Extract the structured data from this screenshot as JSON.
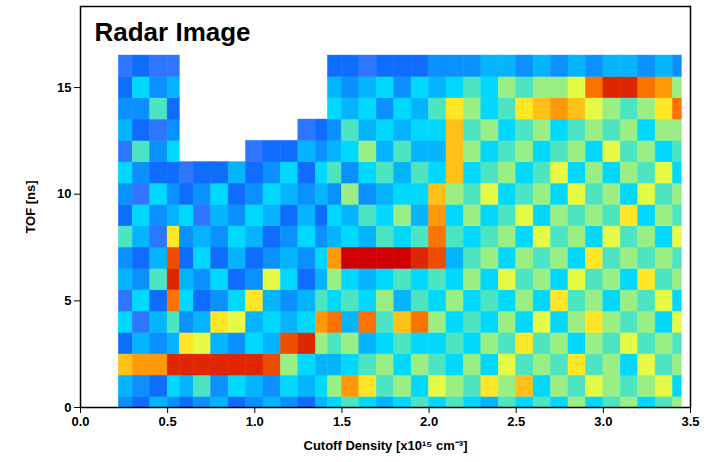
{
  "chart_data": {
    "type": "heatmap",
    "title": "Radar Image",
    "x_label": "Cutoff Density [x10¹⁵ cm⁻³]",
    "y_label": "TOF [ns]",
    "xlim": [
      0,
      3.5
    ],
    "ylim": [
      0,
      18.8
    ],
    "xticks": [
      {
        "value": 0,
        "label": "0.0"
      },
      {
        "value": 0.5,
        "label": "0.5"
      },
      {
        "value": 1,
        "label": "1.0"
      },
      {
        "value": 1.5,
        "label": "1.5"
      },
      {
        "value": 2,
        "label": "2.0"
      },
      {
        "value": 2.5,
        "label": "2.5"
      },
      {
        "value": 3,
        "label": "3.0"
      },
      {
        "value": 3.5,
        "label": "3.5"
      }
    ],
    "yticks": [
      0,
      5,
      10,
      15
    ],
    "zlim": [
      0,
      1
    ],
    "x_edges": [
      0.22,
      0.3,
      0.4,
      0.5,
      0.57,
      0.65,
      0.75,
      0.85,
      0.95,
      1.05,
      1.15,
      1.25,
      1.35,
      1.42,
      1.5,
      1.6,
      1.7,
      1.8,
      1.9,
      2.0,
      2.1,
      2.2,
      2.3,
      2.4,
      2.5,
      2.6,
      2.7,
      2.8,
      2.9,
      3.0,
      3.1,
      3.2,
      3.3,
      3.4,
      3.45
    ],
    "y_edges": [
      0,
      0.5,
      1.5,
      2.5,
      3.5,
      4.5,
      5.5,
      6.5,
      7.5,
      8.5,
      9.5,
      10.5,
      11.5,
      12.5,
      13.5,
      14.5,
      15.5,
      16.5
    ],
    "cells": [
      [
        0.4,
        0.45,
        0.75,
        0.35,
        0.5,
        0.3,
        0.45,
        0.4,
        0.55,
        0.35,
        0.4,
        0.5,
        0.3,
        0.45,
        0.4,
        0.35,
        0.3
      ],
      [
        0.35,
        0.4,
        0.8,
        0.45,
        0.3,
        0.5,
        0.4,
        0.35,
        0.45,
        0.5,
        0.3,
        0.4,
        0.55,
        0.35,
        0.4,
        0.5,
        0.35
      ],
      [
        0.45,
        0.35,
        0.8,
        0.4,
        0.45,
        0.35,
        0.55,
        0.45,
        0.3,
        0.4,
        0.5,
        0.35,
        0.4,
        0.3,
        0.55,
        0.4,
        0.3
      ],
      [
        0.4,
        0.5,
        0.95,
        0.45,
        0.55,
        0.85,
        0.95,
        0.9,
        0.7,
        0.45,
        0.4,
        0.35,
        0.5,
        0.4,
        0.35,
        0.45,
        0.3
      ],
      [
        0.35,
        0.45,
        0.95,
        0.7,
        0.4,
        0.5,
        0.45,
        0.35,
        0.4,
        0.5,
        0.35,
        0.3,
        null,
        null,
        null,
        null,
        null
      ],
      [
        0.4,
        0.55,
        0.95,
        0.65,
        0.45,
        0.35,
        0.4,
        0.5,
        0.45,
        0.3,
        0.4,
        0.35,
        null,
        null,
        null,
        null,
        null
      ],
      [
        0.45,
        0.4,
        0.95,
        0.45,
        0.7,
        0.4,
        0.5,
        0.35,
        0.4,
        0.45,
        0.5,
        0.35,
        null,
        null,
        null,
        null,
        null
      ],
      [
        0.35,
        0.5,
        0.95,
        0.4,
        0.65,
        0.5,
        0.35,
        0.45,
        0.5,
        0.4,
        0.35,
        0.45,
        null,
        null,
        null,
        null,
        null
      ],
      [
        0.4,
        0.45,
        0.95,
        0.5,
        0.45,
        0.7,
        0.4,
        0.35,
        0.45,
        0.5,
        0.4,
        0.35,
        0.3,
        null,
        null,
        null,
        null
      ],
      [
        0.45,
        0.4,
        0.9,
        0.45,
        0.5,
        0.45,
        0.65,
        0.4,
        0.35,
        0.45,
        0.5,
        0.4,
        0.35,
        null,
        null,
        null,
        null
      ],
      [
        0.4,
        0.5,
        0.6,
        0.9,
        0.45,
        0.4,
        0.5,
        0.45,
        0.4,
        0.35,
        0.45,
        0.5,
        0.35,
        null,
        null,
        null,
        null
      ],
      [
        0.35,
        0.45,
        0.5,
        0.95,
        0.5,
        0.45,
        0.35,
        0.4,
        0.5,
        0.45,
        0.4,
        0.35,
        0.45,
        0.3,
        null,
        null,
        null
      ],
      [
        0.45,
        0.5,
        0.45,
        0.6,
        0.8,
        0.55,
        0.45,
        0.5,
        0.4,
        0.35,
        0.45,
        0.5,
        0.4,
        0.35,
        null,
        null,
        null
      ],
      [
        0.5,
        0.6,
        0.45,
        0.55,
        0.85,
        0.5,
        0.6,
        0.8,
        0.45,
        0.5,
        0.4,
        0.55,
        0.45,
        0.4,
        0.5,
        0.45,
        0.35
      ],
      [
        0.55,
        0.8,
        0.5,
        0.6,
        0.45,
        0.55,
        0.5,
        1.0,
        0.5,
        0.45,
        0.6,
        0.4,
        0.5,
        0.55,
        0.45,
        0.4,
        0.35
      ],
      [
        0.5,
        0.7,
        0.55,
        0.45,
        0.85,
        0.5,
        0.45,
        1.0,
        0.45,
        0.55,
        0.4,
        0.5,
        0.6,
        0.45,
        0.5,
        0.45,
        0.3
      ],
      [
        0.45,
        0.55,
        0.6,
        0.5,
        0.55,
        0.6,
        0.5,
        1.0,
        0.55,
        0.5,
        0.45,
        0.55,
        0.45,
        0.5,
        0.4,
        0.5,
        0.35
      ],
      [
        0.5,
        0.6,
        0.5,
        0.55,
        0.75,
        0.45,
        0.55,
        1.0,
        0.5,
        0.6,
        0.5,
        0.45,
        0.55,
        0.45,
        0.5,
        0.4,
        0.35
      ],
      [
        0.55,
        0.5,
        0.6,
        0.5,
        0.85,
        0.55,
        0.5,
        0.95,
        0.55,
        0.45,
        0.5,
        0.55,
        0.45,
        0.5,
        0.45,
        0.5,
        0.35
      ],
      [
        0.5,
        0.65,
        0.55,
        0.5,
        0.6,
        0.5,
        0.55,
        0.9,
        0.85,
        0.8,
        0.75,
        0.5,
        0.45,
        0.5,
        0.55,
        0.45,
        0.4
      ],
      [
        0.55,
        0.6,
        0.5,
        0.55,
        0.5,
        0.6,
        0.5,
        0.45,
        0.55,
        0.5,
        0.6,
        0.75,
        0.75,
        0.75,
        0.7,
        0.5,
        0.4
      ],
      [
        0.5,
        0.55,
        0.6,
        0.5,
        0.55,
        0.5,
        0.6,
        0.55,
        0.5,
        0.6,
        0.55,
        0.5,
        0.6,
        0.55,
        0.6,
        0.55,
        0.4
      ],
      [
        0.45,
        0.7,
        0.5,
        0.6,
        0.5,
        0.55,
        0.5,
        0.6,
        0.55,
        0.5,
        0.65,
        0.55,
        0.5,
        0.6,
        0.5,
        0.5,
        0.45
      ],
      [
        0.55,
        0.6,
        0.65,
        0.55,
        0.6,
        0.5,
        0.65,
        0.5,
        0.6,
        0.55,
        0.5,
        0.6,
        0.55,
        0.5,
        0.55,
        0.6,
        0.45
      ],
      [
        0.5,
        0.75,
        0.55,
        0.7,
        0.5,
        0.6,
        0.55,
        0.6,
        0.5,
        0.65,
        0.55,
        0.5,
        0.6,
        0.55,
        0.7,
        0.55,
        0.4
      ],
      [
        0.55,
        0.5,
        0.6,
        0.55,
        0.65,
        0.5,
        0.6,
        0.55,
        0.65,
        0.5,
        0.6,
        0.55,
        0.5,
        0.6,
        0.75,
        0.6,
        0.45
      ],
      [
        0.5,
        0.6,
        0.55,
        0.6,
        0.5,
        0.7,
        0.5,
        0.6,
        0.55,
        0.6,
        0.5,
        0.65,
        0.55,
        0.5,
        0.8,
        0.6,
        0.4
      ],
      [
        0.6,
        0.55,
        0.7,
        0.5,
        0.6,
        0.55,
        0.65,
        0.5,
        0.6,
        0.55,
        0.65,
        0.5,
        0.6,
        0.55,
        0.75,
        0.65,
        0.45
      ],
      [
        0.5,
        0.65,
        0.55,
        0.6,
        0.7,
        0.6,
        0.55,
        0.7,
        0.5,
        0.6,
        0.55,
        0.6,
        0.5,
        0.6,
        0.65,
        0.85,
        0.4
      ],
      [
        0.55,
        0.6,
        0.6,
        0.55,
        0.6,
        0.5,
        0.6,
        0.55,
        0.65,
        0.55,
        0.6,
        0.5,
        0.65,
        0.55,
        0.6,
        0.95,
        0.45
      ],
      [
        0.6,
        0.55,
        0.5,
        0.65,
        0.55,
        0.6,
        0.5,
        0.6,
        0.55,
        0.7,
        0.5,
        0.6,
        0.55,
        0.6,
        0.55,
        0.95,
        0.45
      ],
      [
        0.5,
        0.6,
        0.65,
        0.55,
        0.6,
        0.55,
        0.7,
        0.55,
        0.6,
        0.5,
        0.65,
        0.55,
        0.6,
        0.5,
        0.6,
        0.85,
        0.4
      ],
      [
        0.55,
        0.65,
        0.55,
        0.6,
        0.5,
        0.65,
        0.55,
        0.6,
        0.5,
        0.6,
        0.55,
        0.65,
        0.5,
        0.6,
        0.7,
        0.8,
        0.45
      ],
      [
        0.6,
        0.5,
        0.6,
        0.55,
        0.65,
        0.5,
        0.6,
        0.55,
        0.65,
        0.55,
        0.6,
        0.5,
        0.55,
        0.6,
        0.85,
        0.6,
        0.4
      ]
    ]
  }
}
